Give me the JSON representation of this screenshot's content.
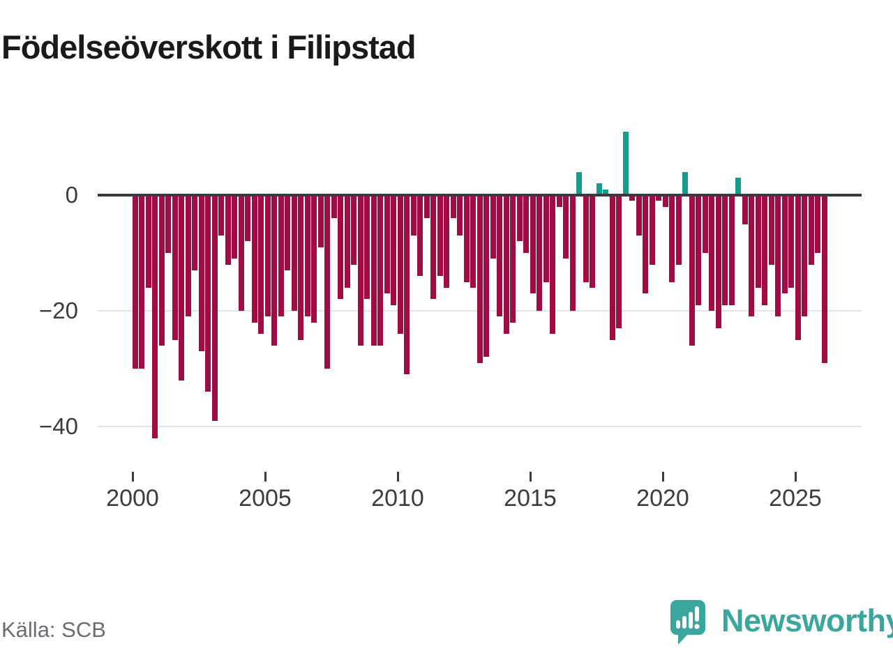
{
  "title": "Födelseöverskott i Filipstad",
  "source": "Källa: SCB",
  "logo": {
    "brand": "Newsworthy",
    "icon": "newsworthy-speech-bubble-chart-icon"
  },
  "colors": {
    "negative_bar": "#a00d45",
    "positive_bar": "#19998f",
    "zero_line": "#3a3a3e",
    "gridline": "#e4e4e6",
    "axis_text": "#3c3c40",
    "title_text": "#1a1a1a",
    "source_text": "#6b6b74",
    "brand_teal": "#3aa69d"
  },
  "chart_data": {
    "type": "bar",
    "title": "Födelseöverskott i Filipstad",
    "interval": "quarterly",
    "start": "2000-Q1",
    "end": "2026-Q1",
    "ylim": [
      -44,
      13
    ],
    "y_ticks": [
      0,
      -20,
      -40
    ],
    "y_tick_labels": [
      "0",
      "−20",
      "−40"
    ],
    "x_tick_years": [
      2000,
      2005,
      2010,
      2015,
      2020,
      2025
    ],
    "x_tick_labels": [
      "2000",
      "2005",
      "2010",
      "2015",
      "2020",
      "2025"
    ],
    "grid": "horizontal-only",
    "legend": "none",
    "series": [
      {
        "name": "Födelseöverskott",
        "values": [
          -30,
          -30,
          -16,
          -42,
          -26,
          -10,
          -25,
          -32,
          -21,
          -13,
          -27,
          -34,
          -39,
          -7,
          -12,
          -11,
          -20,
          -8,
          -22,
          -24,
          -21,
          -26,
          -21,
          -13,
          -20,
          -25,
          -21,
          -22,
          -9,
          -30,
          -4,
          -18,
          -16,
          -12,
          -26,
          -18,
          -26,
          -26,
          -17,
          -19,
          -24,
          -31,
          -7,
          -14,
          -4,
          -18,
          -14,
          -16,
          -4,
          -7,
          -15,
          -16,
          -29,
          -28,
          -11,
          -21,
          -24,
          -22,
          -8,
          -10,
          -17,
          -20,
          -15,
          -24,
          -2,
          -11,
          -20,
          4,
          -15,
          -16,
          2,
          1,
          -25,
          -23,
          11,
          -1,
          -7,
          -17,
          -12,
          -1,
          -2,
          -15,
          -12,
          4,
          -26,
          -19,
          -10,
          -20,
          -23,
          -19,
          -19,
          3,
          -5,
          -21,
          -16,
          -19,
          -12,
          -21,
          -17,
          -16,
          -25,
          -21,
          -12,
          -10,
          -29
        ]
      }
    ]
  }
}
